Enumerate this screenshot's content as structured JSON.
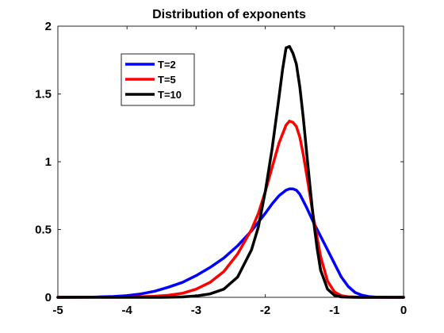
{
  "chart_data": {
    "type": "line",
    "title": "Distribution of exponents",
    "xlabel": "",
    "ylabel": "",
    "xlim": [
      -5,
      0
    ],
    "ylim": [
      0,
      2
    ],
    "xticks": [
      -5,
      -4,
      -3,
      -2,
      -1,
      0
    ],
    "yticks": [
      0,
      0.5,
      1,
      1.5,
      2
    ],
    "xtick_labels": [
      "-5",
      "-4",
      "-3",
      "-2",
      "-1",
      "0"
    ],
    "ytick_labels": [
      "0",
      "0.5",
      "1",
      "1.5",
      "2"
    ],
    "grid": false,
    "legend_position": "top-left",
    "series": [
      {
        "name": "T=2",
        "color": "#0000ff",
        "x": [
          -5,
          -4.5,
          -4.2,
          -4.0,
          -3.8,
          -3.6,
          -3.4,
          -3.2,
          -3.0,
          -2.8,
          -2.6,
          -2.4,
          -2.2,
          -2.0,
          -1.9,
          -1.8,
          -1.7,
          -1.65,
          -1.6,
          -1.55,
          -1.5,
          -1.4,
          -1.3,
          -1.2,
          -1.1,
          -1.0,
          -0.9,
          -0.8,
          -0.7,
          -0.6,
          -0.5,
          -0.4,
          -0.2,
          0
        ],
        "y": [
          0,
          0.002,
          0.006,
          0.012,
          0.025,
          0.045,
          0.075,
          0.11,
          0.16,
          0.22,
          0.29,
          0.38,
          0.49,
          0.62,
          0.69,
          0.75,
          0.79,
          0.8,
          0.8,
          0.79,
          0.76,
          0.66,
          0.55,
          0.45,
          0.35,
          0.25,
          0.15,
          0.08,
          0.035,
          0.015,
          0.005,
          0.002,
          0,
          0
        ]
      },
      {
        "name": "T=5",
        "color": "#ff0000",
        "x": [
          -5,
          -4,
          -3.6,
          -3.4,
          -3.2,
          -3.0,
          -2.8,
          -2.6,
          -2.4,
          -2.2,
          -2.1,
          -2.0,
          -1.9,
          -1.8,
          -1.7,
          -1.65,
          -1.6,
          -1.55,
          -1.5,
          -1.45,
          -1.4,
          -1.35,
          -1.3,
          -1.2,
          -1.1,
          -1.0,
          -0.9,
          -0.8,
          -0.6,
          -0.3,
          0
        ],
        "y": [
          0,
          0.002,
          0.008,
          0.015,
          0.03,
          0.06,
          0.11,
          0.19,
          0.32,
          0.5,
          0.62,
          0.78,
          0.96,
          1.14,
          1.27,
          1.3,
          1.29,
          1.26,
          1.18,
          1.05,
          0.9,
          0.74,
          0.58,
          0.3,
          0.12,
          0.04,
          0.012,
          0.004,
          0,
          0,
          0
        ]
      },
      {
        "name": "T=10",
        "color": "#000000",
        "x": [
          -5,
          -3.5,
          -3.2,
          -3.0,
          -2.8,
          -2.6,
          -2.4,
          -2.2,
          -2.1,
          -2.0,
          -1.9,
          -1.8,
          -1.75,
          -1.7,
          -1.65,
          -1.6,
          -1.55,
          -1.5,
          -1.45,
          -1.4,
          -1.35,
          -1.3,
          -1.25,
          -1.2,
          -1.1,
          -1.0,
          -0.9,
          -0.7,
          -0.3,
          0
        ],
        "y": [
          0,
          0,
          0.003,
          0.01,
          0.025,
          0.06,
          0.15,
          0.35,
          0.52,
          0.78,
          1.1,
          1.48,
          1.68,
          1.84,
          1.85,
          1.8,
          1.72,
          1.55,
          1.32,
          1.06,
          0.8,
          0.56,
          0.36,
          0.2,
          0.06,
          0.015,
          0.003,
          0,
          0,
          0
        ]
      }
    ]
  }
}
